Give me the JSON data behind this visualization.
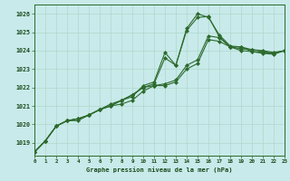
{
  "title": "Graphe pression niveau de la mer (hPa)",
  "xlabel_ticks": [
    0,
    1,
    2,
    3,
    4,
    5,
    6,
    7,
    8,
    9,
    10,
    11,
    12,
    13,
    14,
    15,
    16,
    17,
    18,
    19,
    20,
    21,
    22,
    23
  ],
  "ylim": [
    1018.3,
    1026.5
  ],
  "yticks": [
    1019,
    1020,
    1021,
    1022,
    1023,
    1024,
    1025,
    1026
  ],
  "xlim": [
    0,
    23
  ],
  "line_color": "#2d6a2d",
  "bg_color": "#c8eaea",
  "grid_color": "#b0d8cc",
  "series": [
    [
      1018.5,
      1019.1,
      1019.9,
      1020.2,
      1020.3,
      1020.5,
      1020.8,
      1021.0,
      1021.3,
      1021.6,
      1022.0,
      1022.2,
      1023.6,
      1023.2,
      1025.1,
      1025.8,
      1025.85,
      1024.75,
      1024.2,
      1024.2,
      1023.95,
      1023.9,
      1023.85,
      1024.0
    ],
    [
      1018.5,
      1019.1,
      1019.9,
      1020.2,
      1020.3,
      1020.5,
      1020.8,
      1021.1,
      1021.3,
      1021.5,
      1022.1,
      1022.3,
      1023.9,
      1023.2,
      1025.2,
      1026.0,
      1025.8,
      1024.85,
      1024.25,
      1024.2,
      1024.05,
      1023.95,
      1023.85,
      1024.0
    ],
    [
      1018.5,
      1019.1,
      1019.9,
      1020.2,
      1020.3,
      1020.5,
      1020.8,
      1021.0,
      1021.3,
      1021.6,
      1022.0,
      1022.1,
      1022.2,
      1022.4,
      1023.2,
      1023.5,
      1024.8,
      1024.7,
      1024.2,
      1024.1,
      1024.05,
      1024.0,
      1023.9,
      1024.0
    ],
    [
      1018.5,
      1019.1,
      1019.9,
      1020.2,
      1020.2,
      1020.5,
      1020.8,
      1021.0,
      1021.1,
      1021.3,
      1021.8,
      1022.1,
      1022.1,
      1022.3,
      1023.0,
      1023.3,
      1024.6,
      1024.5,
      1024.2,
      1024.0,
      1023.95,
      1023.85,
      1023.8,
      1024.0
    ]
  ]
}
